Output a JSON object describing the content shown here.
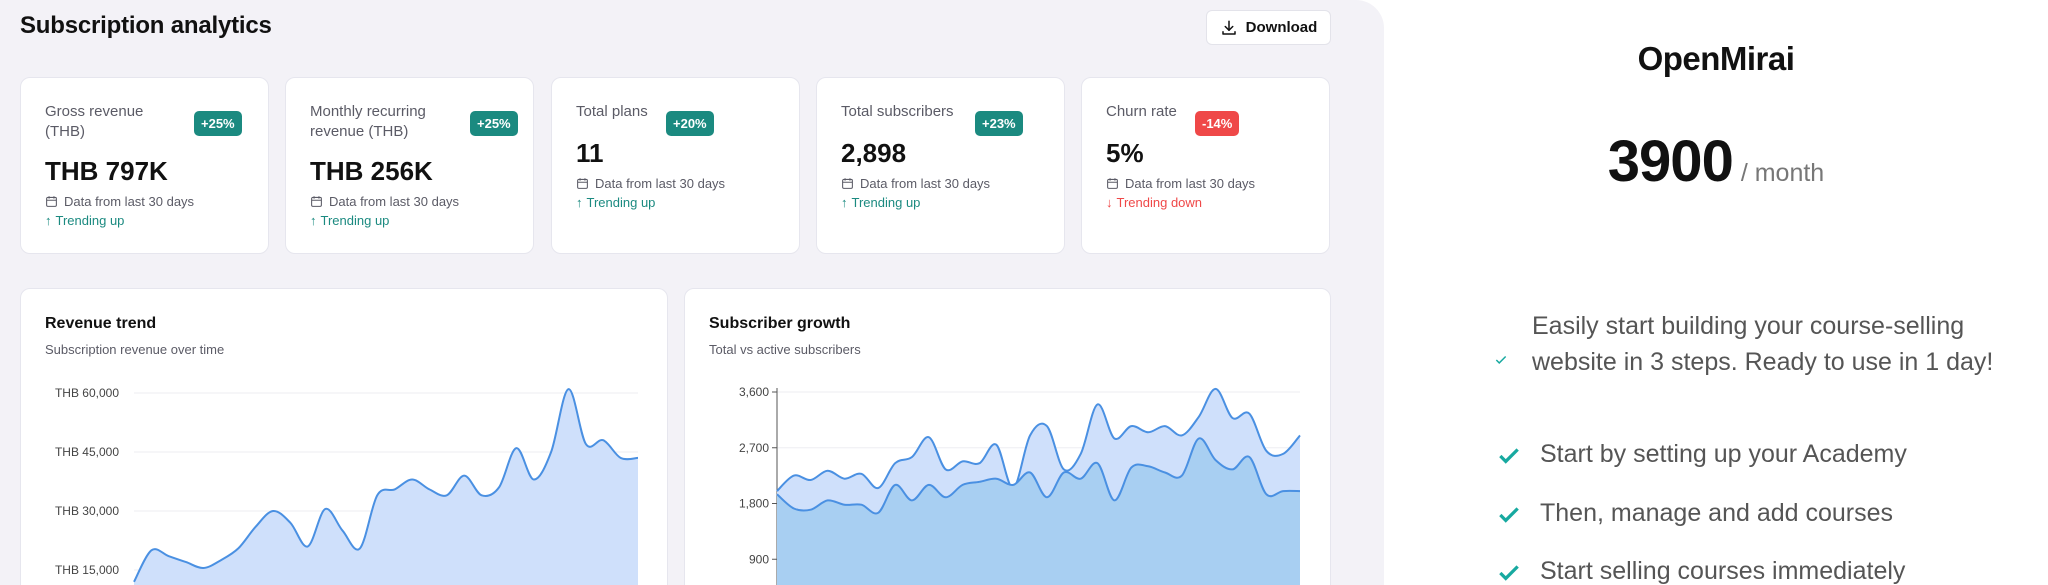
{
  "dashboard": {
    "title": "Subscription analytics",
    "download_label": "Download",
    "stat_cards": [
      {
        "label": "Gross revenue (THB)",
        "badge": "+25%",
        "badge_type": "up",
        "value": "THB 797K",
        "meta": "Data from last 30 days",
        "trend": "Trending up",
        "trend_type": "up"
      },
      {
        "label": "Monthly recurring revenue (THB)",
        "badge": "+25%",
        "badge_type": "up",
        "value": "THB 256K",
        "meta": "Data from last 30 days",
        "trend": "Trending up",
        "trend_type": "up"
      },
      {
        "label": "Total plans",
        "badge": "+20%",
        "badge_type": "up",
        "value": "11",
        "meta": "Data from last 30 days",
        "trend": "Trending up",
        "trend_type": "up"
      },
      {
        "label": "Total subscribers",
        "badge": "+23%",
        "badge_type": "up",
        "value": "2,898",
        "meta": "Data from last 30 days",
        "trend": "Trending up",
        "trend_type": "up"
      },
      {
        "label": "Churn rate",
        "badge": "-14%",
        "badge_type": "down",
        "value": "5%",
        "meta": "Data from last 30 days",
        "trend": "Trending down",
        "trend_type": "down"
      }
    ],
    "colors": {
      "accent_up": "#1b8a80",
      "accent_down": "#ef4848",
      "line": "#4a90e2",
      "area_light": "#cfe0fb",
      "area_dark": "#a8cff2"
    }
  },
  "chart_data": [
    {
      "type": "area",
      "title": "Revenue trend",
      "subtitle": "Subscription revenue over time",
      "yticks": [
        "THB 60,000",
        "THB 45,000",
        "THB 30,000",
        "THB 15,000"
      ],
      "ylim": [
        0,
        60000
      ],
      "series": [
        {
          "values": [
            12000,
            20000,
            18500,
            17000,
            15500,
            17500,
            20500,
            26000,
            30000,
            27000,
            21000,
            30500,
            25000,
            20500,
            34000,
            35500,
            38000,
            35500,
            34000,
            39000,
            34000,
            36000,
            46000,
            38000,
            45000,
            61000,
            47000,
            48000,
            43500,
            43500
          ]
        }
      ]
    },
    {
      "type": "area",
      "title": "Subscriber growth",
      "subtitle": "Total vs active subscribers",
      "yticks": [
        "3,600",
        "2,700",
        "1,800",
        "900"
      ],
      "ylim": [
        0,
        3600
      ],
      "series": [
        {
          "values": [
            2000,
            2250,
            2180,
            2330,
            2200,
            2280,
            2050,
            2450,
            2550,
            2870,
            2350,
            2480,
            2450,
            2750,
            2050,
            2900,
            3050,
            2350,
            2600,
            3400,
            2850,
            3050,
            2950,
            3050,
            2900,
            3200,
            3650,
            3180,
            3250,
            2650,
            2600,
            2900
          ]
        },
        {
          "values": [
            1950,
            1720,
            1700,
            1850,
            1780,
            1780,
            1650,
            2100,
            1850,
            2100,
            1900,
            2100,
            2150,
            2200,
            2100,
            2300,
            1900,
            2300,
            2200,
            2450,
            1850,
            2380,
            2400,
            2300,
            2250,
            2850,
            2500,
            2350,
            2550,
            1950,
            2000,
            2000
          ]
        }
      ]
    }
  ],
  "pricing": {
    "brand": "OpenMirai",
    "amount": "3900",
    "period": "/ month",
    "features": [
      "Easily start building your course-selling website in 3 steps. Ready to use in 1 day!",
      "Start by setting up your Academy",
      "Then, manage and add courses",
      "Start selling courses immediately"
    ],
    "check_color": "#17a9a0"
  }
}
